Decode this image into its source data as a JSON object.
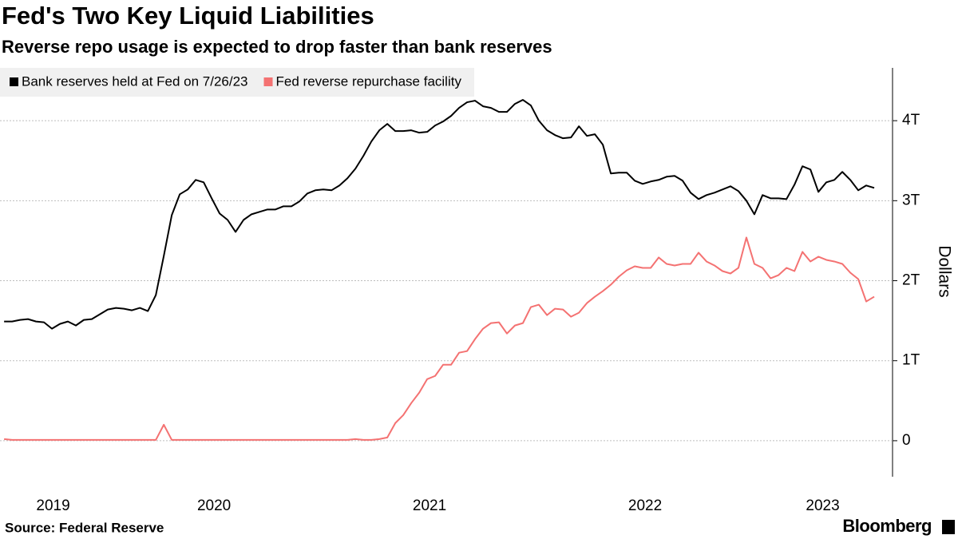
{
  "chart_data": {
    "type": "line",
    "title": "Fed's Two Key Liquid Liabilities",
    "subtitle": "Reverse repo usage is expected to drop faster than bank reserves",
    "ylabel": "Dollars",
    "source": "Source: Federal Reserve",
    "brand": "Bloomberg",
    "grid": true,
    "legend": "top-left",
    "xlim": [
      2019.507,
      2023.648
    ],
    "xticks": [
      2019,
      2020,
      2021,
      2022,
      2023
    ],
    "ylim": [
      -0.45,
      4.66
    ],
    "yticks": [
      0,
      {
        "value": 1,
        "label": "1T"
      },
      {
        "value": 2,
        "label": "2T"
      },
      {
        "value": 3,
        "label": "3T"
      },
      {
        "value": 4,
        "label": "4T"
      }
    ],
    "x": [
      2019.526,
      2019.563,
      2019.6,
      2019.637,
      2019.674,
      2019.711,
      2019.748,
      2019.785,
      2019.822,
      2019.859,
      2019.896,
      2019.933,
      2019.97,
      2020.007,
      2020.045,
      2020.082,
      2020.119,
      2020.156,
      2020.193,
      2020.23,
      2020.267,
      2020.304,
      2020.341,
      2020.378,
      2020.415,
      2020.452,
      2020.489,
      2020.526,
      2020.563,
      2020.6,
      2020.637,
      2020.674,
      2020.711,
      2020.748,
      2020.785,
      2020.822,
      2020.859,
      2020.896,
      2020.933,
      2020.97,
      2021.007,
      2021.045,
      2021.082,
      2021.119,
      2021.156,
      2021.193,
      2021.23,
      2021.267,
      2021.304,
      2021.341,
      2021.378,
      2021.415,
      2021.452,
      2021.489,
      2021.526,
      2021.563,
      2021.6,
      2021.637,
      2021.674,
      2021.711,
      2021.748,
      2021.785,
      2021.822,
      2021.859,
      2021.896,
      2021.933,
      2021.97,
      2022.007,
      2022.045,
      2022.082,
      2022.119,
      2022.156,
      2022.193,
      2022.23,
      2022.267,
      2022.304,
      2022.341,
      2022.378,
      2022.415,
      2022.452,
      2022.489,
      2022.526,
      2022.563,
      2022.6,
      2022.637,
      2022.674,
      2022.711,
      2022.748,
      2022.785,
      2022.822,
      2022.859,
      2022.896,
      2022.933,
      2022.97,
      2023.007,
      2023.045,
      2023.082,
      2023.119,
      2023.156,
      2023.193,
      2023.23,
      2023.267,
      2023.304,
      2023.341,
      2023.378,
      2023.415,
      2023.452,
      2023.489,
      2023.526,
      2023.563
    ],
    "series": [
      {
        "name": "Bank reserves held at Fed on 7/26/23",
        "color": "#000000",
        "values": [
          1.49,
          1.49,
          1.51,
          1.52,
          1.49,
          1.48,
          1.4,
          1.46,
          1.49,
          1.44,
          1.51,
          1.52,
          1.58,
          1.64,
          1.66,
          1.65,
          1.63,
          1.66,
          1.62,
          1.82,
          2.31,
          2.82,
          3.08,
          3.14,
          3.26,
          3.23,
          3.03,
          2.84,
          2.76,
          2.61,
          2.76,
          2.83,
          2.86,
          2.89,
          2.89,
          2.93,
          2.93,
          2.99,
          3.09,
          3.13,
          3.14,
          3.13,
          3.19,
          3.28,
          3.4,
          3.56,
          3.74,
          3.88,
          3.96,
          3.87,
          3.87,
          3.88,
          3.85,
          3.86,
          3.94,
          3.99,
          4.06,
          4.16,
          4.23,
          4.25,
          4.18,
          4.16,
          4.11,
          4.11,
          4.21,
          4.26,
          4.19,
          4.0,
          3.88,
          3.82,
          3.78,
          3.79,
          3.93,
          3.81,
          3.83,
          3.7,
          3.34,
          3.35,
          3.35,
          3.25,
          3.21,
          3.24,
          3.26,
          3.3,
          3.31,
          3.25,
          3.1,
          3.02,
          3.07,
          3.1,
          3.14,
          3.18,
          3.12,
          3.0,
          2.83,
          3.07,
          3.03,
          3.03,
          3.02,
          3.2,
          3.43,
          3.39,
          3.11,
          3.23,
          3.26,
          3.36,
          3.26,
          3.13,
          3.19,
          3.16
        ]
      },
      {
        "name": "Fed reverse repurchase facility",
        "color": "#f47272",
        "values": [
          0.02,
          0.01,
          0.01,
          0.01,
          0.01,
          0.01,
          0.01,
          0.01,
          0.01,
          0.01,
          0.01,
          0.01,
          0.01,
          0.01,
          0.01,
          0.01,
          0.01,
          0.01,
          0.01,
          0.01,
          0.2,
          0.01,
          0.01,
          0.01,
          0.01,
          0.01,
          0.01,
          0.01,
          0.01,
          0.01,
          0.01,
          0.01,
          0.01,
          0.01,
          0.01,
          0.01,
          0.01,
          0.01,
          0.01,
          0.01,
          0.01,
          0.01,
          0.01,
          0.01,
          0.02,
          0.01,
          0.01,
          0.02,
          0.04,
          0.22,
          0.32,
          0.47,
          0.6,
          0.77,
          0.81,
          0.95,
          0.95,
          1.1,
          1.12,
          1.27,
          1.4,
          1.47,
          1.48,
          1.34,
          1.44,
          1.47,
          1.67,
          1.7,
          1.57,
          1.65,
          1.64,
          1.55,
          1.6,
          1.72,
          1.8,
          1.87,
          1.95,
          2.05,
          2.13,
          2.18,
          2.16,
          2.16,
          2.29,
          2.21,
          2.19,
          2.21,
          2.21,
          2.35,
          2.24,
          2.19,
          2.12,
          2.09,
          2.16,
          2.54,
          2.21,
          2.16,
          2.03,
          2.07,
          2.16,
          2.12,
          2.36,
          2.24,
          2.3,
          2.26,
          2.24,
          2.21,
          2.1,
          2.02,
          1.74,
          1.8
        ]
      }
    ]
  }
}
